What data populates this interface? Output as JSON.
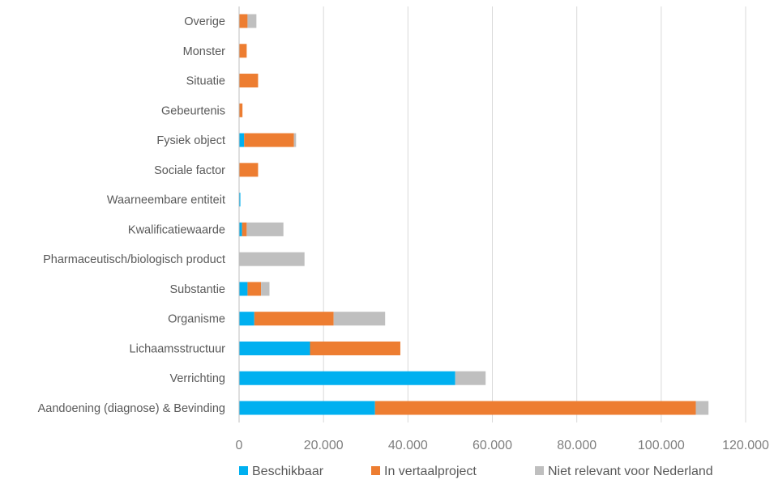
{
  "chart_data": {
    "type": "bar",
    "orientation": "horizontal",
    "stacked": true,
    "categories": [
      "Overige",
      "Monster",
      "Situatie",
      "Gebeurtenis",
      "Fysiek object",
      "Sociale factor",
      "Waarneembare entiteit",
      "Kwalificatiewaarde",
      "Pharmaceutisch/biologisch product",
      "Substantie",
      "Organisme",
      "Lichaamsstructuur",
      "Verrichting",
      "Aandoening (diagnose) & Bevinding"
    ],
    "series": [
      {
        "name": "Beschikbaar",
        "color": "#00b0f0",
        "values": [
          0,
          0,
          0,
          0,
          1200,
          0,
          300,
          700,
          0,
          2000,
          3600,
          16800,
          51200,
          32200
        ]
      },
      {
        "name": "In vertaalproject",
        "color": "#ed7d31",
        "values": [
          2000,
          1800,
          4500,
          800,
          11800,
          4500,
          0,
          1100,
          0,
          3200,
          18800,
          21400,
          0,
          76000
        ]
      },
      {
        "name": "Niet relevant voor Nederland",
        "color": "#bfbfbf",
        "values": [
          2100,
          0,
          0,
          0,
          500,
          0,
          0,
          8700,
          15500,
          2000,
          12200,
          0,
          7200,
          3000
        ]
      }
    ],
    "xlim": [
      0,
      120000
    ],
    "xticks": [
      0,
      20000,
      40000,
      60000,
      80000,
      100000,
      120000
    ],
    "xtick_labels": [
      "0",
      "20.000",
      "40.000",
      "60.000",
      "80.000",
      "100.000",
      "120.000"
    ],
    "grid": true,
    "legend": "bottom"
  }
}
